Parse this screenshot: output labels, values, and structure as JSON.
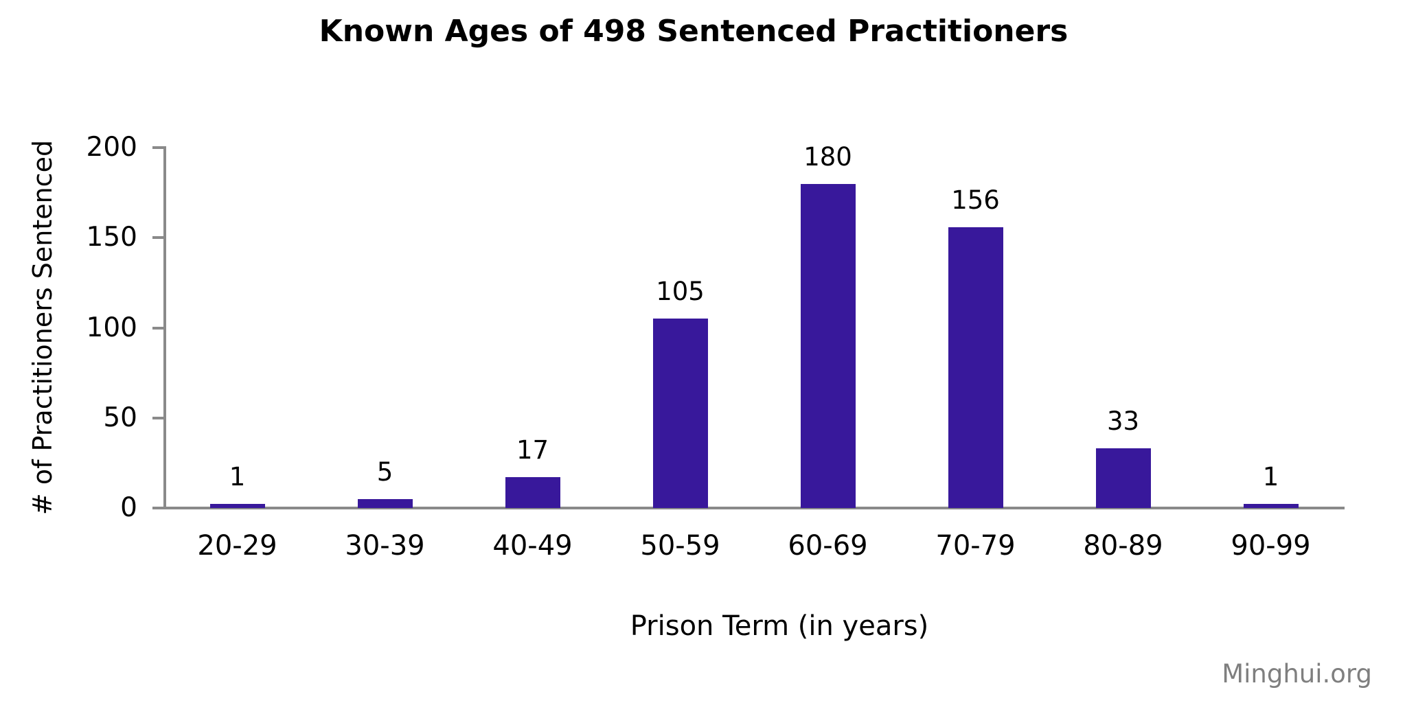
{
  "chart_data": {
    "type": "bar",
    "title": "Known Ages of 498 Sentenced Practitioners",
    "xlabel": "Prison Term (in years)",
    "ylabel": "# of Practitioners Sentenced",
    "categories": [
      "20-29",
      "30-39",
      "40-49",
      "50-59",
      "60-69",
      "70-79",
      "80-89",
      "90-99"
    ],
    "values": [
      1,
      5,
      17,
      105,
      180,
      156,
      33,
      1
    ],
    "data_labels_shown": true,
    "ylim": [
      0,
      200
    ],
    "yticks": [
      0,
      50,
      100,
      150,
      200
    ],
    "grid": false,
    "legend_position": "none",
    "bar_color": "#38189b",
    "axis_color": "#8a8a8a",
    "text_color": "#000000"
  },
  "watermark": {
    "text": "Minghui.org",
    "color": "#7f7f7f"
  }
}
